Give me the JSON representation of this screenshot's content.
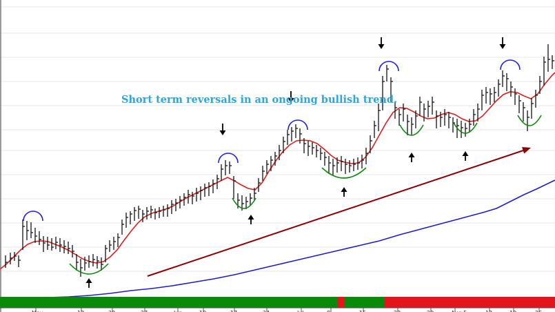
{
  "chart_data": {
    "type": "bar",
    "subtype": "ohlc-price-chart",
    "annotation": "Short term reversals in an ongoing bullish trend.",
    "grid": true,
    "x_tick_labels": [
      "May",
      "13",
      "20",
      "27",
      "Jun",
      "10",
      "17",
      "24",
      "Jul",
      "8",
      "15",
      "22",
      "29",
      "Aug 5",
      "12",
      "19",
      "26"
    ],
    "bars": [
      [
        8,
        370,
        388,
        380
      ],
      [
        15,
        366,
        383,
        374
      ],
      [
        21,
        365,
        378,
        371
      ],
      [
        27,
        370,
        387,
        377
      ],
      [
        33,
        318,
        362,
        328
      ],
      [
        39,
        320,
        348,
        334
      ],
      [
        45,
        322,
        345,
        337
      ],
      [
        51,
        330,
        352,
        342
      ],
      [
        57,
        335,
        355,
        347
      ],
      [
        63,
        342,
        365,
        352
      ],
      [
        69,
        343,
        362,
        355
      ],
      [
        75,
        345,
        363,
        358
      ],
      [
        81,
        343,
        361,
        351
      ],
      [
        87,
        345,
        365,
        355
      ],
      [
        93,
        348,
        367,
        357
      ],
      [
        99,
        350,
        368,
        360
      ],
      [
        105,
        355,
        373,
        364
      ],
      [
        111,
        368,
        392,
        380
      ],
      [
        117,
        375,
        401,
        388
      ],
      [
        123,
        372,
        392,
        381
      ],
      [
        129,
        370,
        388,
        379
      ],
      [
        135,
        368,
        386,
        376
      ],
      [
        141,
        371,
        389,
        378
      ],
      [
        147,
        373,
        392,
        383
      ],
      [
        153,
        355,
        380,
        360
      ],
      [
        159,
        348,
        365,
        355
      ],
      [
        165,
        343,
        362,
        350
      ],
      [
        171,
        338,
        358,
        344
      ],
      [
        177,
        318,
        340,
        325
      ],
      [
        183,
        308,
        330,
        315
      ],
      [
        189,
        306,
        325,
        310
      ],
      [
        195,
        300,
        320,
        305
      ],
      [
        201,
        298,
        317,
        303
      ],
      [
        207,
        304,
        322,
        310
      ],
      [
        213,
        300,
        318,
        306
      ],
      [
        219,
        298,
        316,
        304
      ],
      [
        225,
        302,
        318,
        308
      ],
      [
        231,
        300,
        316,
        306
      ],
      [
        237,
        298,
        314,
        304
      ],
      [
        243,
        296,
        314,
        302
      ],
      [
        249,
        290,
        310,
        296
      ],
      [
        255,
        288,
        306,
        294
      ],
      [
        261,
        284,
        302,
        290
      ],
      [
        267,
        280,
        298,
        286
      ],
      [
        273,
        275,
        295,
        282
      ],
      [
        279,
        278,
        296,
        284
      ],
      [
        285,
        272,
        292,
        280
      ],
      [
        291,
        270,
        290,
        276
      ],
      [
        297,
        266,
        285,
        272
      ],
      [
        303,
        264,
        284,
        270
      ],
      [
        309,
        260,
        280,
        266
      ],
      [
        315,
        253,
        274,
        259
      ],
      [
        321,
        238,
        262,
        245
      ],
      [
        327,
        232,
        254,
        240
      ],
      [
        333,
        234,
        252,
        240
      ],
      [
        339,
        255,
        288,
        262
      ],
      [
        345,
        280,
        302,
        290
      ],
      [
        351,
        283,
        305,
        295
      ],
      [
        357,
        285,
        303,
        292
      ],
      [
        363,
        280,
        297,
        287
      ],
      [
        369,
        272,
        291,
        280
      ],
      [
        375,
        258,
        278,
        265
      ],
      [
        381,
        240,
        262,
        248
      ],
      [
        387,
        232,
        252,
        238
      ],
      [
        393,
        226,
        248,
        232
      ],
      [
        399,
        220,
        240,
        226
      ],
      [
        405,
        210,
        232,
        218
      ],
      [
        411,
        198,
        222,
        205
      ],
      [
        417,
        188,
        210,
        195
      ],
      [
        423,
        184,
        205,
        190
      ],
      [
        429,
        180,
        200,
        186
      ],
      [
        435,
        186,
        208,
        194
      ],
      [
        441,
        200,
        222,
        208
      ],
      [
        447,
        204,
        226,
        212
      ],
      [
        453,
        206,
        224,
        214
      ],
      [
        459,
        210,
        228,
        218
      ],
      [
        465,
        214,
        232,
        222
      ],
      [
        471,
        220,
        240,
        228
      ],
      [
        477,
        226,
        252,
        236
      ],
      [
        483,
        230,
        254,
        240
      ],
      [
        489,
        228,
        250,
        236
      ],
      [
        495,
        226,
        248,
        234
      ],
      [
        501,
        230,
        252,
        238
      ],
      [
        507,
        232,
        250,
        240
      ],
      [
        513,
        230,
        248,
        238
      ],
      [
        519,
        228,
        246,
        236
      ],
      [
        525,
        224,
        244,
        232
      ],
      [
        531,
        214,
        238,
        222
      ],
      [
        537,
        196,
        222,
        204
      ],
      [
        543,
        175,
        200,
        182
      ],
      [
        549,
        150,
        190,
        160
      ],
      [
        555,
        110,
        160,
        118
      ],
      [
        561,
        94,
        118,
        100
      ],
      [
        567,
        112,
        148,
        118
      ],
      [
        573,
        148,
        172,
        156
      ],
      [
        579,
        158,
        182,
        166
      ],
      [
        585,
        150,
        176,
        158
      ],
      [
        591,
        166,
        196,
        176
      ],
      [
        597,
        170,
        196,
        180
      ],
      [
        603,
        160,
        186,
        168
      ],
      [
        609,
        140,
        168,
        148
      ],
      [
        615,
        150,
        176,
        158
      ],
      [
        621,
        146,
        170,
        154
      ],
      [
        627,
        140,
        166,
        148
      ],
      [
        633,
        160,
        186,
        168
      ],
      [
        639,
        162,
        184,
        170
      ],
      [
        645,
        158,
        182,
        166
      ],
      [
        651,
        162,
        186,
        170
      ],
      [
        657,
        170,
        192,
        178
      ],
      [
        663,
        172,
        200,
        182
      ],
      [
        669,
        175,
        200,
        185
      ],
      [
        675,
        178,
        198,
        186
      ],
      [
        681,
        172,
        192,
        180
      ],
      [
        687,
        158,
        182,
        166
      ],
      [
        693,
        150,
        176,
        158
      ],
      [
        699,
        130,
        160,
        138
      ],
      [
        705,
        126,
        150,
        134
      ],
      [
        711,
        128,
        152,
        136
      ],
      [
        717,
        126,
        148,
        134
      ],
      [
        723,
        115,
        140,
        122
      ],
      [
        729,
        102,
        126,
        110
      ],
      [
        735,
        106,
        132,
        114
      ],
      [
        741,
        118,
        140,
        126
      ],
      [
        747,
        128,
        152,
        136
      ],
      [
        753,
        138,
        164,
        146
      ],
      [
        759,
        148,
        176,
        156
      ],
      [
        765,
        160,
        190,
        170
      ],
      [
        771,
        142,
        172,
        150
      ],
      [
        777,
        130,
        156,
        138
      ],
      [
        783,
        110,
        136,
        118
      ],
      [
        789,
        82,
        124,
        90
      ],
      [
        795,
        64,
        104,
        86
      ],
      [
        801,
        80,
        100,
        88
      ]
    ],
    "moving_average_short": [
      [
        0,
        390
      ],
      [
        10,
        382
      ],
      [
        20,
        372
      ],
      [
        30,
        362
      ],
      [
        40,
        354
      ],
      [
        50,
        350
      ],
      [
        60,
        349
      ],
      [
        70,
        350
      ],
      [
        80,
        354
      ],
      [
        90,
        358
      ],
      [
        100,
        363
      ],
      [
        110,
        369
      ],
      [
        120,
        375
      ],
      [
        130,
        379
      ],
      [
        140,
        381
      ],
      [
        150,
        379
      ],
      [
        160,
        372
      ],
      [
        170,
        362
      ],
      [
        180,
        348
      ],
      [
        190,
        335
      ],
      [
        200,
        323
      ],
      [
        210,
        314
      ],
      [
        220,
        309
      ],
      [
        230,
        306
      ],
      [
        240,
        303
      ],
      [
        250,
        299
      ],
      [
        260,
        293
      ],
      [
        270,
        287
      ],
      [
        280,
        282
      ],
      [
        290,
        277
      ],
      [
        300,
        272
      ],
      [
        310,
        267
      ],
      [
        320,
        262
      ],
      [
        330,
        257
      ],
      [
        340,
        262
      ],
      [
        350,
        268
      ],
      [
        360,
        273
      ],
      [
        370,
        275
      ],
      [
        380,
        265
      ],
      [
        390,
        248
      ],
      [
        400,
        233
      ],
      [
        410,
        220
      ],
      [
        420,
        210
      ],
      [
        430,
        204
      ],
      [
        440,
        203
      ],
      [
        450,
        204
      ],
      [
        460,
        208
      ],
      [
        470,
        216
      ],
      [
        480,
        225
      ],
      [
        490,
        232
      ],
      [
        500,
        235
      ],
      [
        510,
        237
      ],
      [
        520,
        236
      ],
      [
        530,
        228
      ],
      [
        540,
        214
      ],
      [
        550,
        196
      ],
      [
        560,
        178
      ],
      [
        570,
        163
      ],
      [
        580,
        156
      ],
      [
        590,
        157
      ],
      [
        600,
        162
      ],
      [
        610,
        168
      ],
      [
        620,
        172
      ],
      [
        630,
        171
      ],
      [
        640,
        166
      ],
      [
        650,
        163
      ],
      [
        660,
        166
      ],
      [
        670,
        172
      ],
      [
        680,
        176
      ],
      [
        690,
        175
      ],
      [
        700,
        168
      ],
      [
        710,
        157
      ],
      [
        720,
        146
      ],
      [
        730,
        137
      ],
      [
        740,
        133
      ],
      [
        750,
        134
      ],
      [
        760,
        139
      ],
      [
        770,
        143
      ],
      [
        780,
        136
      ],
      [
        790,
        122
      ],
      [
        800,
        110
      ],
      [
        805,
        105
      ]
    ],
    "moving_average_long": [
      [
        70,
        431
      ],
      [
        100,
        430
      ],
      [
        130,
        428
      ],
      [
        160,
        425
      ],
      [
        190,
        421
      ],
      [
        220,
        418
      ],
      [
        250,
        414
      ],
      [
        280,
        409
      ],
      [
        310,
        404
      ],
      [
        340,
        398
      ],
      [
        370,
        391
      ],
      [
        400,
        384
      ],
      [
        430,
        377
      ],
      [
        460,
        370
      ],
      [
        490,
        363
      ],
      [
        520,
        356
      ],
      [
        550,
        349
      ],
      [
        580,
        340
      ],
      [
        610,
        332
      ],
      [
        640,
        324
      ],
      [
        670,
        316
      ],
      [
        700,
        308
      ],
      [
        720,
        302
      ],
      [
        740,
        292
      ],
      [
        760,
        282
      ],
      [
        780,
        273
      ],
      [
        805,
        261
      ]
    ],
    "trend_arrow": [
      [
        214,
        400
      ],
      [
        770,
        214
      ]
    ],
    "tops": [
      [
        48,
        320
      ],
      [
        331,
        236
      ],
      [
        432,
        188
      ],
      [
        564,
        103
      ],
      [
        740,
        101
      ]
    ],
    "bottoms": [
      [
        129,
        390
      ],
      [
        354,
        295
      ],
      [
        499,
        251
      ],
      [
        597,
        189
      ],
      [
        675,
        186
      ],
      [
        768,
        175
      ]
    ],
    "down_arrows": [
      [
        323,
        196
      ],
      [
        422,
        149
      ],
      [
        553,
        71
      ],
      [
        729,
        71
      ]
    ],
    "up_arrows": [
      [
        129,
        404
      ],
      [
        364,
        312
      ],
      [
        499,
        272
      ],
      [
        597,
        222
      ],
      [
        675,
        220
      ]
    ],
    "signal_bar": [
      {
        "from": 0,
        "to": 490,
        "color": "#0a8a0a"
      },
      {
        "from": 490,
        "to": 500,
        "color": "#e3141b"
      },
      {
        "from": 500,
        "to": 557,
        "color": "#0a8a0a"
      },
      {
        "from": 557,
        "to": 805,
        "color": "#e3141b"
      }
    ],
    "colors": {
      "price": "#111111",
      "short_ma": "#e31b1b",
      "long_ma": "#1c1ccc",
      "trend": "#8b0000",
      "top_arc": "#1a1aff",
      "bottom_arc": "#0a8a0a",
      "annotation": "#2aa7e0"
    }
  }
}
